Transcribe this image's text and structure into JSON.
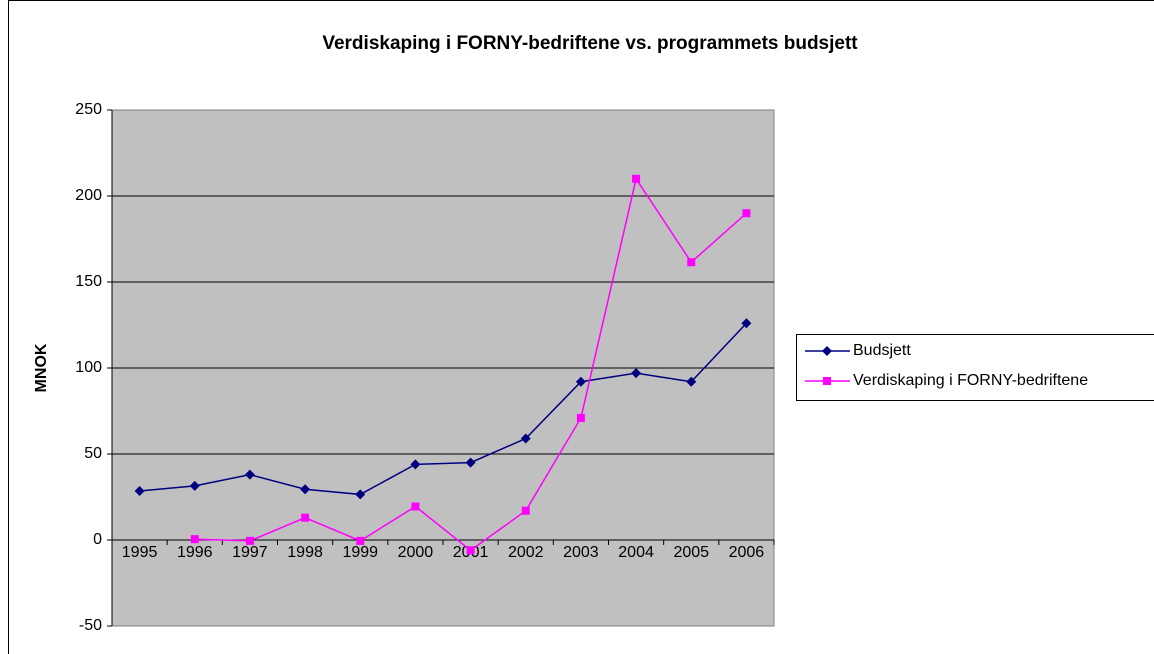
{
  "chart_data": {
    "type": "line",
    "title": "Verdiskaping i FORNY-bedriftene vs. programmets budsjett",
    "y_label": "MNOK",
    "categories": [
      "1995",
      "1996",
      "1997",
      "1998",
      "1999",
      "2000",
      "2001",
      "2002",
      "2003",
      "2004",
      "2005",
      "2006"
    ],
    "series": [
      {
        "name": "Budsjett",
        "color": "#000080",
        "marker": "diamond",
        "values": [
          28.5,
          31.5,
          38,
          29.5,
          26.5,
          44,
          45,
          59,
          92,
          97,
          92,
          126
        ]
      },
      {
        "name": "Verdiskaping i FORNY-bedriftene",
        "color": "#ff00ff",
        "marker": "square",
        "values": [
          null,
          0.5,
          -0.5,
          13,
          -0.5,
          19.5,
          -6,
          17,
          71,
          210,
          161.5,
          190
        ]
      }
    ],
    "ylim": [
      -50,
      250
    ],
    "yticks": [
      -50,
      0,
      50,
      100,
      150,
      200,
      250
    ],
    "grid": true,
    "legend": "right"
  }
}
